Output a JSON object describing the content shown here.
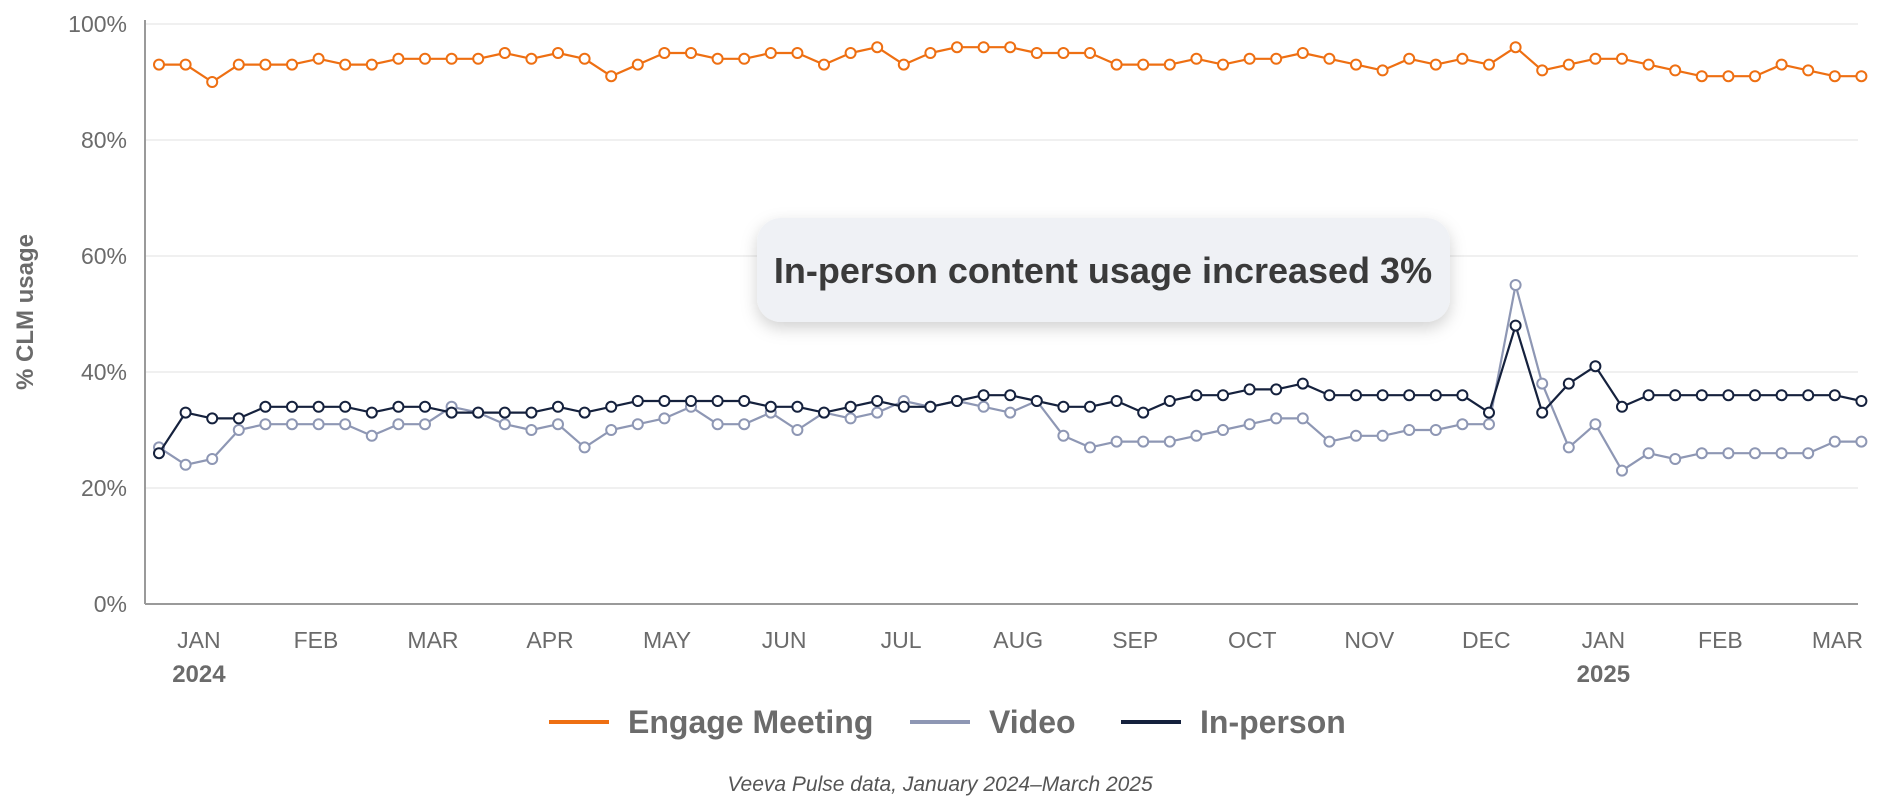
{
  "chart_data": {
    "type": "line",
    "ylabel": "% CLM usage",
    "ylim": [
      0,
      100
    ],
    "yticks": [
      "0%",
      "20%",
      "40%",
      "60%",
      "80%",
      "100%"
    ],
    "xtick_labels": [
      "JAN",
      "FEB",
      "MAR",
      "APR",
      "MAY",
      "JUN",
      "JUL",
      "AUG",
      "SEP",
      "OCT",
      "NOV",
      "DEC",
      "JAN",
      "FEB",
      "MAR"
    ],
    "xtick_weeks": [
      1.5,
      5.9,
      10.3,
      14.7,
      19.1,
      23.5,
      27.9,
      32.3,
      36.7,
      41.1,
      45.5,
      49.9,
      54.3,
      58.7,
      63.1
    ],
    "year_labels": [
      {
        "label": "2024",
        "week": 1.5
      },
      {
        "label": "2025",
        "week": 54.3
      }
    ],
    "annotation": "In-person content usage increased 3%",
    "source": "Veeva Pulse data, January 2024–March 2025",
    "series": [
      {
        "name": "Engage Meeting",
        "color": "#ee6f12",
        "values": [
          93,
          93,
          90,
          93,
          93,
          93,
          94,
          93,
          93,
          94,
          94,
          94,
          94,
          95,
          94,
          95,
          94,
          91,
          93,
          95,
          95,
          94,
          94,
          95,
          95,
          93,
          95,
          96,
          93,
          95,
          96,
          96,
          96,
          95,
          95,
          95,
          93,
          93,
          93,
          94,
          93,
          94,
          94,
          95,
          94,
          93,
          92,
          94,
          93,
          94,
          93,
          96,
          92,
          93,
          94,
          94,
          93,
          92,
          91,
          91,
          91,
          93,
          92,
          91,
          91
        ]
      },
      {
        "name": "Video",
        "color": "#8e97b4",
        "values": [
          27,
          24,
          25,
          30,
          31,
          31,
          31,
          31,
          29,
          31,
          31,
          34,
          33,
          31,
          30,
          31,
          27,
          30,
          31,
          32,
          34,
          31,
          31,
          33,
          30,
          33,
          32,
          33,
          35,
          34,
          35,
          34,
          33,
          35,
          29,
          27,
          28,
          28,
          28,
          29,
          30,
          31,
          32,
          32,
          28,
          29,
          29,
          30,
          30,
          31,
          31,
          55,
          38,
          27,
          31,
          23,
          26,
          25,
          26,
          26,
          26,
          26,
          26,
          28,
          28
        ]
      },
      {
        "name": "In-person",
        "color": "#15213d",
        "values": [
          26,
          33,
          32,
          32,
          34,
          34,
          34,
          34,
          33,
          34,
          34,
          33,
          33,
          33,
          33,
          34,
          33,
          34,
          35,
          35,
          35,
          35,
          35,
          34,
          34,
          33,
          34,
          35,
          34,
          34,
          35,
          36,
          36,
          35,
          34,
          34,
          35,
          33,
          35,
          36,
          36,
          37,
          37,
          38,
          36,
          36,
          36,
          36,
          36,
          36,
          33,
          48,
          33,
          38,
          41,
          34,
          36,
          36,
          36,
          36,
          36,
          36,
          36,
          36,
          35
        ]
      }
    ]
  }
}
